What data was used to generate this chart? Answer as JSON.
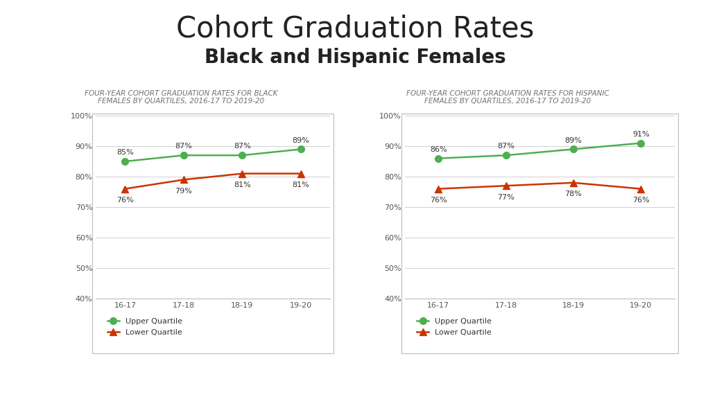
{
  "title_line1": "Cohort Graduation Rates",
  "title_line2": "Black and Hispanic Females",
  "subtitle_left": "FOUR-YEAR COHORT GRADUATION RATES FOR BLACK\nFEMALES BY QUARTILES, 2016-17 TO 2019-20",
  "subtitle_right": "FOUR-YEAR COHORT GRADUATION RATES FOR HISPANIC\nFEMALES BY QUARTILES, 2016-17 TO 2019-20",
  "x_labels": [
    "16-17",
    "17-18",
    "18-19",
    "19-20"
  ],
  "black_upper": [
    85,
    87,
    87,
    89
  ],
  "black_lower": [
    76,
    79,
    81,
    81
  ],
  "hispanic_upper": [
    86,
    87,
    89,
    91
  ],
  "hispanic_lower": [
    76,
    77,
    78,
    76
  ],
  "upper_color": "#4CAF50",
  "lower_color": "#CC3300",
  "bg_color": "#ffffff",
  "ylim": [
    40,
    100
  ],
  "yticks": [
    40,
    50,
    60,
    70,
    80,
    90,
    100
  ],
  "bottom_bar_color": "#8B2000",
  "grid_color": "#d0d0d0",
  "subtitle_color": "#707070",
  "title1_size": 30,
  "title2_size": 20,
  "subtitle_size": 7.5
}
